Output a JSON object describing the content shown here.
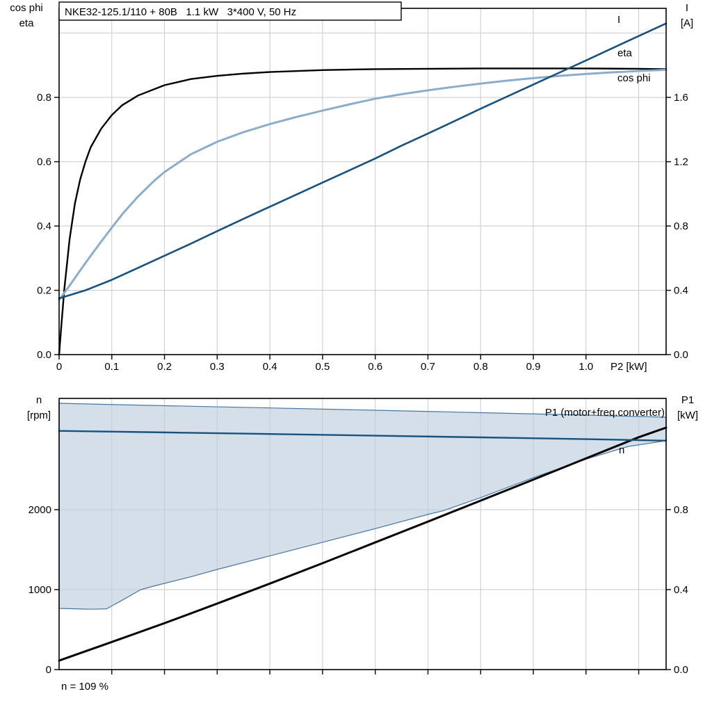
{
  "colors": {
    "black": "#000000",
    "dark_blue": "#17527f",
    "light_blue": "#8aadcb",
    "envelope_fill": "#bccbdd",
    "envelope_edge": "#46769f",
    "grid": "#cacaca"
  },
  "chart_data": [
    {
      "id": "motor-curves",
      "type": "line",
      "title": "NKE32-125.1/110 + 80B   1.1 kW   3*400 V, 50 Hz",
      "x_axis": {
        "label": "P2 [kW]",
        "range": [
          0,
          1.152
        ],
        "tick_labels": [
          "0",
          "0.1",
          "0.2",
          "0.3",
          "0.4",
          "0.5",
          "0.6",
          "0.7",
          "0.8",
          "0.9",
          "1.0"
        ],
        "grid_extra": [
          1.1
        ]
      },
      "left_axis": {
        "title_lines": [
          "cos phi",
          "eta"
        ],
        "range": [
          0,
          1.077
        ],
        "tick_labels": [
          "0.0",
          "0.2",
          "0.4",
          "0.6",
          "0.8"
        ],
        "grid_extra": [
          1.0
        ]
      },
      "right_axis": {
        "title_lines": [
          "I",
          "[A]"
        ],
        "range": [
          0,
          2.154
        ],
        "tick_labels": [
          "0.0",
          "0.4",
          "0.8",
          "1.2",
          "1.6"
        ]
      },
      "series": [
        {
          "name": "eta",
          "label": "eta",
          "color": "black",
          "axis": "left",
          "width": 2.4,
          "points": [
            [
              0,
              0
            ],
            [
              0.005,
              0.105
            ],
            [
              0.01,
              0.205
            ],
            [
              0.02,
              0.36
            ],
            [
              0.03,
              0.47
            ],
            [
              0.04,
              0.545
            ],
            [
              0.05,
              0.6
            ],
            [
              0.06,
              0.645
            ],
            [
              0.08,
              0.703
            ],
            [
              0.1,
              0.745
            ],
            [
              0.12,
              0.776
            ],
            [
              0.15,
              0.806
            ],
            [
              0.2,
              0.838
            ],
            [
              0.25,
              0.857
            ],
            [
              0.3,
              0.867
            ],
            [
              0.35,
              0.874
            ],
            [
              0.4,
              0.879
            ],
            [
              0.5,
              0.885
            ],
            [
              0.6,
              0.888
            ],
            [
              0.7,
              0.889
            ],
            [
              0.8,
              0.89
            ],
            [
              0.9,
              0.89
            ],
            [
              1.0,
              0.89
            ],
            [
              1.1,
              0.889
            ],
            [
              1.152,
              0.888
            ]
          ]
        },
        {
          "name": "cos phi",
          "label": "cos phi",
          "color": "light_blue",
          "axis": "left",
          "width": 3,
          "points": [
            [
              0,
              0.17
            ],
            [
              0.02,
              0.215
            ],
            [
              0.05,
              0.285
            ],
            [
              0.08,
              0.352
            ],
            [
              0.1,
              0.395
            ],
            [
              0.12,
              0.437
            ],
            [
              0.15,
              0.492
            ],
            [
              0.18,
              0.54
            ],
            [
              0.2,
              0.568
            ],
            [
              0.25,
              0.623
            ],
            [
              0.3,
              0.662
            ],
            [
              0.35,
              0.692
            ],
            [
              0.4,
              0.717
            ],
            [
              0.45,
              0.739
            ],
            [
              0.5,
              0.759
            ],
            [
              0.55,
              0.778
            ],
            [
              0.6,
              0.796
            ],
            [
              0.65,
              0.81
            ],
            [
              0.7,
              0.822
            ],
            [
              0.75,
              0.833
            ],
            [
              0.8,
              0.843
            ],
            [
              0.85,
              0.852
            ],
            [
              0.9,
              0.86
            ],
            [
              0.95,
              0.867
            ],
            [
              1.0,
              0.873
            ],
            [
              1.05,
              0.878
            ],
            [
              1.1,
              0.882
            ],
            [
              1.152,
              0.886
            ]
          ]
        },
        {
          "name": "I",
          "label": "I",
          "color": "dark_blue",
          "axis": "right",
          "width": 2.6,
          "points": [
            [
              0,
              0.35
            ],
            [
              0.05,
              0.4
            ],
            [
              0.1,
              0.465
            ],
            [
              0.15,
              0.54
            ],
            [
              0.2,
              0.615
            ],
            [
              0.25,
              0.69
            ],
            [
              0.3,
              0.768
            ],
            [
              0.35,
              0.845
            ],
            [
              0.4,
              0.92
            ],
            [
              0.45,
              0.995
            ],
            [
              0.5,
              1.07
            ],
            [
              0.55,
              1.145
            ],
            [
              0.6,
              1.22
            ],
            [
              0.65,
              1.3
            ],
            [
              0.7,
              1.375
            ],
            [
              0.75,
              1.452
            ],
            [
              0.8,
              1.53
            ],
            [
              0.85,
              1.605
            ],
            [
              0.9,
              1.68
            ],
            [
              0.95,
              1.755
            ],
            [
              1.0,
              1.83
            ],
            [
              1.05,
              1.906
            ],
            [
              1.1,
              1.982
            ],
            [
              1.152,
              2.06
            ]
          ]
        }
      ]
    },
    {
      "id": "speed-power",
      "type": "line+area",
      "annotation": "n = 109 %",
      "x_axis": {
        "label": "",
        "range": [
          0,
          1.152
        ],
        "tick_labels": [],
        "grid_extra": [
          0.1,
          0.2,
          0.3,
          0.4,
          0.5,
          0.6,
          0.7,
          0.8,
          0.9,
          1.0,
          1.1
        ]
      },
      "left_axis": {
        "title_lines": [
          "n",
          "[rpm]"
        ],
        "range": [
          0,
          3391
        ],
        "tick_labels": [
          "0",
          "1000",
          "2000"
        ],
        "grid_extra": []
      },
      "right_axis": {
        "title_lines": [
          "P1",
          "[kW]"
        ],
        "range": [
          0,
          1.356
        ],
        "tick_labels": [
          "0.0",
          "0.4",
          "0.8"
        ]
      },
      "area": {
        "name": "speed-envelope",
        "axis": "left",
        "upper": [
          [
            0,
            3330
          ],
          [
            0.2,
            3300
          ],
          [
            0.4,
            3272
          ],
          [
            0.6,
            3243
          ],
          [
            0.8,
            3213
          ],
          [
            1.0,
            3182
          ],
          [
            1.152,
            3156
          ]
        ],
        "lower": [
          [
            0,
            765
          ],
          [
            0.06,
            755
          ],
          [
            0.09,
            760
          ],
          [
            0.12,
            868
          ],
          [
            0.155,
            1000
          ],
          [
            0.19,
            1062
          ],
          [
            0.25,
            1160
          ],
          [
            0.3,
            1252
          ],
          [
            0.4,
            1422
          ],
          [
            0.5,
            1592
          ],
          [
            0.6,
            1762
          ],
          [
            0.7,
            1940
          ],
          [
            0.73,
            1988
          ],
          [
            0.8,
            2150
          ],
          [
            0.9,
            2400
          ],
          [
            1.0,
            2632
          ],
          [
            1.08,
            2790
          ],
          [
            1.152,
            2862
          ]
        ]
      },
      "series": [
        {
          "name": "P1",
          "label": "P1 (motor+freq.converter)",
          "color": "black",
          "axis": "right",
          "width": 3,
          "points": [
            [
              0,
              0.045
            ],
            [
              0.1,
              0.138
            ],
            [
              0.2,
              0.232
            ],
            [
              0.3,
              0.33
            ],
            [
              0.4,
              0.43
            ],
            [
              0.5,
              0.532
            ],
            [
              0.6,
              0.636
            ],
            [
              0.7,
              0.74
            ],
            [
              0.8,
              0.845
            ],
            [
              0.9,
              0.95
            ],
            [
              1.0,
              1.056
            ],
            [
              1.1,
              1.162
            ],
            [
              1.152,
              1.21
            ]
          ]
        },
        {
          "name": "n",
          "label": "n",
          "color": "dark_blue",
          "axis": "left",
          "width": 2.4,
          "points": [
            [
              0,
              2985
            ],
            [
              0.2,
              2966
            ],
            [
              0.4,
              2946
            ],
            [
              0.6,
              2925
            ],
            [
              0.8,
              2904
            ],
            [
              1.0,
              2882
            ],
            [
              1.152,
              2862
            ]
          ]
        }
      ]
    }
  ]
}
